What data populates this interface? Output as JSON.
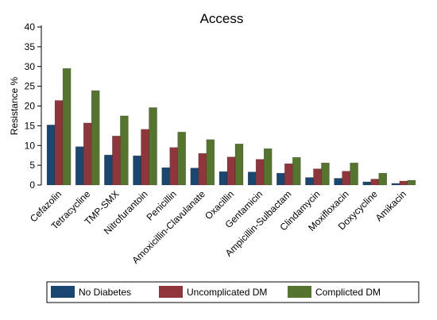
{
  "chart_data": {
    "type": "bar",
    "title": "Access",
    "xlabel": "",
    "ylabel": "Resistance %",
    "ylim": [
      0,
      40
    ],
    "yticks": [
      0,
      5,
      10,
      15,
      20,
      25,
      30,
      35,
      40
    ],
    "grid": false,
    "legend_position": "bottom",
    "categories": [
      "Cefazolin",
      "Tetracycline",
      "TMP-SMX",
      "Nitrofurantoin",
      "Penicillin",
      "Amoxicillin-Clavulanate",
      "Oxacillin",
      "Gentamicin",
      "Ampicillin-Sulbactam",
      "Clindamycin",
      "Moxifloxacin",
      "Doxycycline",
      "Amikacin"
    ],
    "series": [
      {
        "name": "No Diabetes",
        "color": "#1a476f",
        "values": [
          15.2,
          9.7,
          7.6,
          7.4,
          4.4,
          4.3,
          3.4,
          3.3,
          3.0,
          1.9,
          1.7,
          0.8,
          0.4
        ]
      },
      {
        "name": "Uncomplicated DM",
        "color": "#90353b",
        "values": [
          21.4,
          15.7,
          12.4,
          14.1,
          9.5,
          8.0,
          7.1,
          6.5,
          5.4,
          4.1,
          3.5,
          1.5,
          1.0
        ]
      },
      {
        "name": "Complicted DM",
        "color": "#55752f",
        "values": [
          29.5,
          23.9,
          17.5,
          19.6,
          13.4,
          11.5,
          10.4,
          9.2,
          7.0,
          5.6,
          5.6,
          3.0,
          1.2
        ]
      }
    ]
  }
}
